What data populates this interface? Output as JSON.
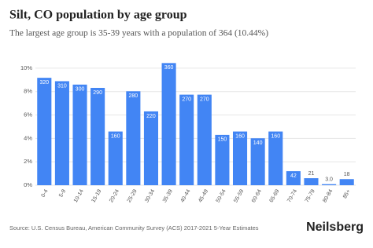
{
  "chart_data": {
    "type": "bar",
    "title": "Silt, CO population by age group",
    "subtitle": "The largest age group is 35-39 years with a population of 364 (10.44%)",
    "categories": [
      "0-4",
      "5-9",
      "10-14",
      "15-19",
      "20-24",
      "25-29",
      "30-34",
      "35-39",
      "40-44",
      "45-49",
      "50-54",
      "55-59",
      "60-64",
      "65-69",
      "70-74",
      "75-79",
      "80-84",
      "85+"
    ],
    "values": [
      9.18,
      8.89,
      8.6,
      8.32,
      4.59,
      8.03,
      6.31,
      10.44,
      7.74,
      7.74,
      4.3,
      4.59,
      4.01,
      4.59,
      1.2,
      0.6,
      0.09,
      0.52
    ],
    "bar_labels": [
      "320",
      "310",
      "300",
      "290",
      "160",
      "280",
      "220",
      "360",
      "270",
      "270",
      "150",
      "160",
      "140",
      "160",
      "42",
      "21",
      "3.0",
      "18"
    ],
    "color": "#4285f4",
    "ylim": [
      0,
      10.8
    ],
    "yticks": [
      {
        "value": 0,
        "label": "0%"
      },
      {
        "value": 2,
        "label": "2%"
      },
      {
        "value": 4,
        "label": "4%"
      },
      {
        "value": 6,
        "label": "6%"
      },
      {
        "value": 8,
        "label": "8%"
      },
      {
        "value": 10,
        "label": "10%"
      }
    ],
    "grid": true,
    "source": "Source: U.S. Census Bureau, American Community Survey (ACS) 2017-2021 5-Year Estimates",
    "brand": "Neilsberg"
  }
}
